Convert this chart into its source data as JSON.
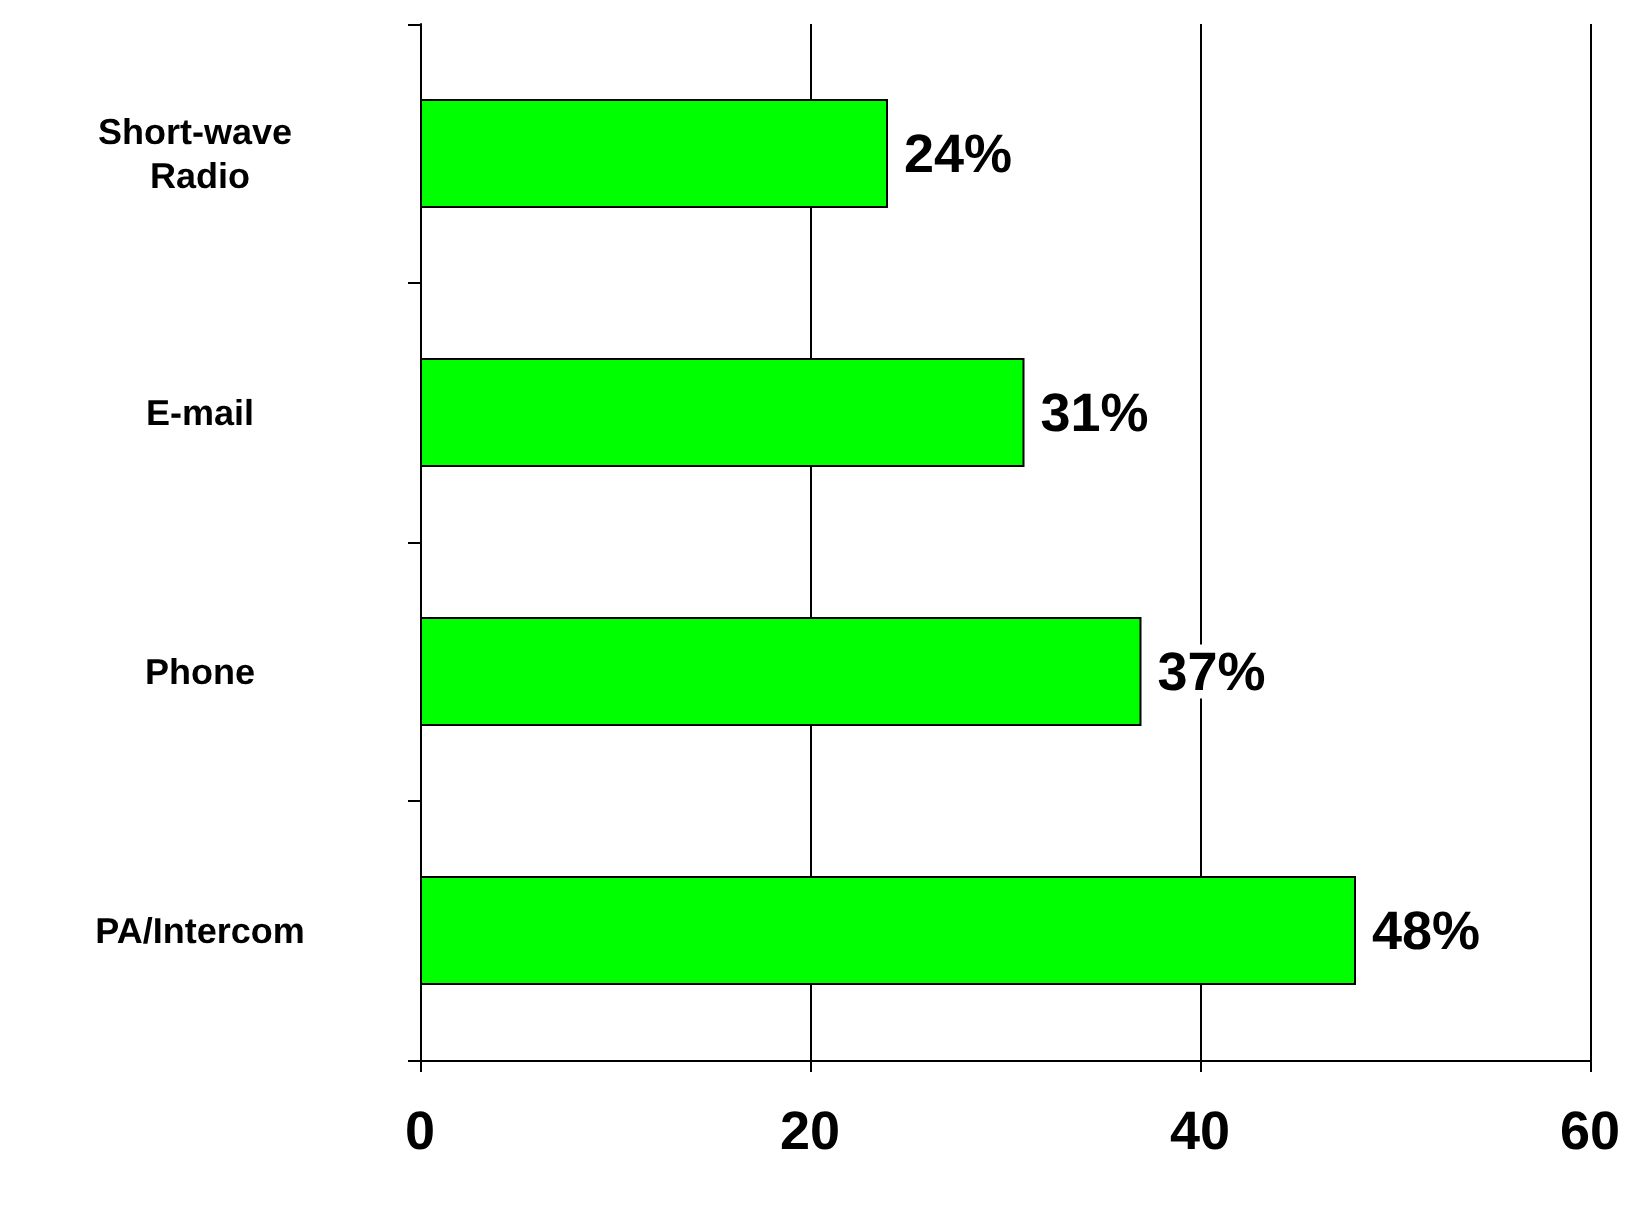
{
  "chart_data": {
    "type": "bar",
    "orientation": "horizontal",
    "categories": [
      "Short-wave Radio",
      "E-mail",
      "Phone",
      "PA/Intercom"
    ],
    "values": [
      24,
      31,
      37,
      48
    ],
    "value_labels": [
      "24%",
      "31%",
      "37%",
      "48%"
    ],
    "color": "#00ff00",
    "xlim": [
      0,
      60
    ],
    "xticks": [
      0,
      20,
      40,
      60
    ],
    "grid": "x"
  }
}
